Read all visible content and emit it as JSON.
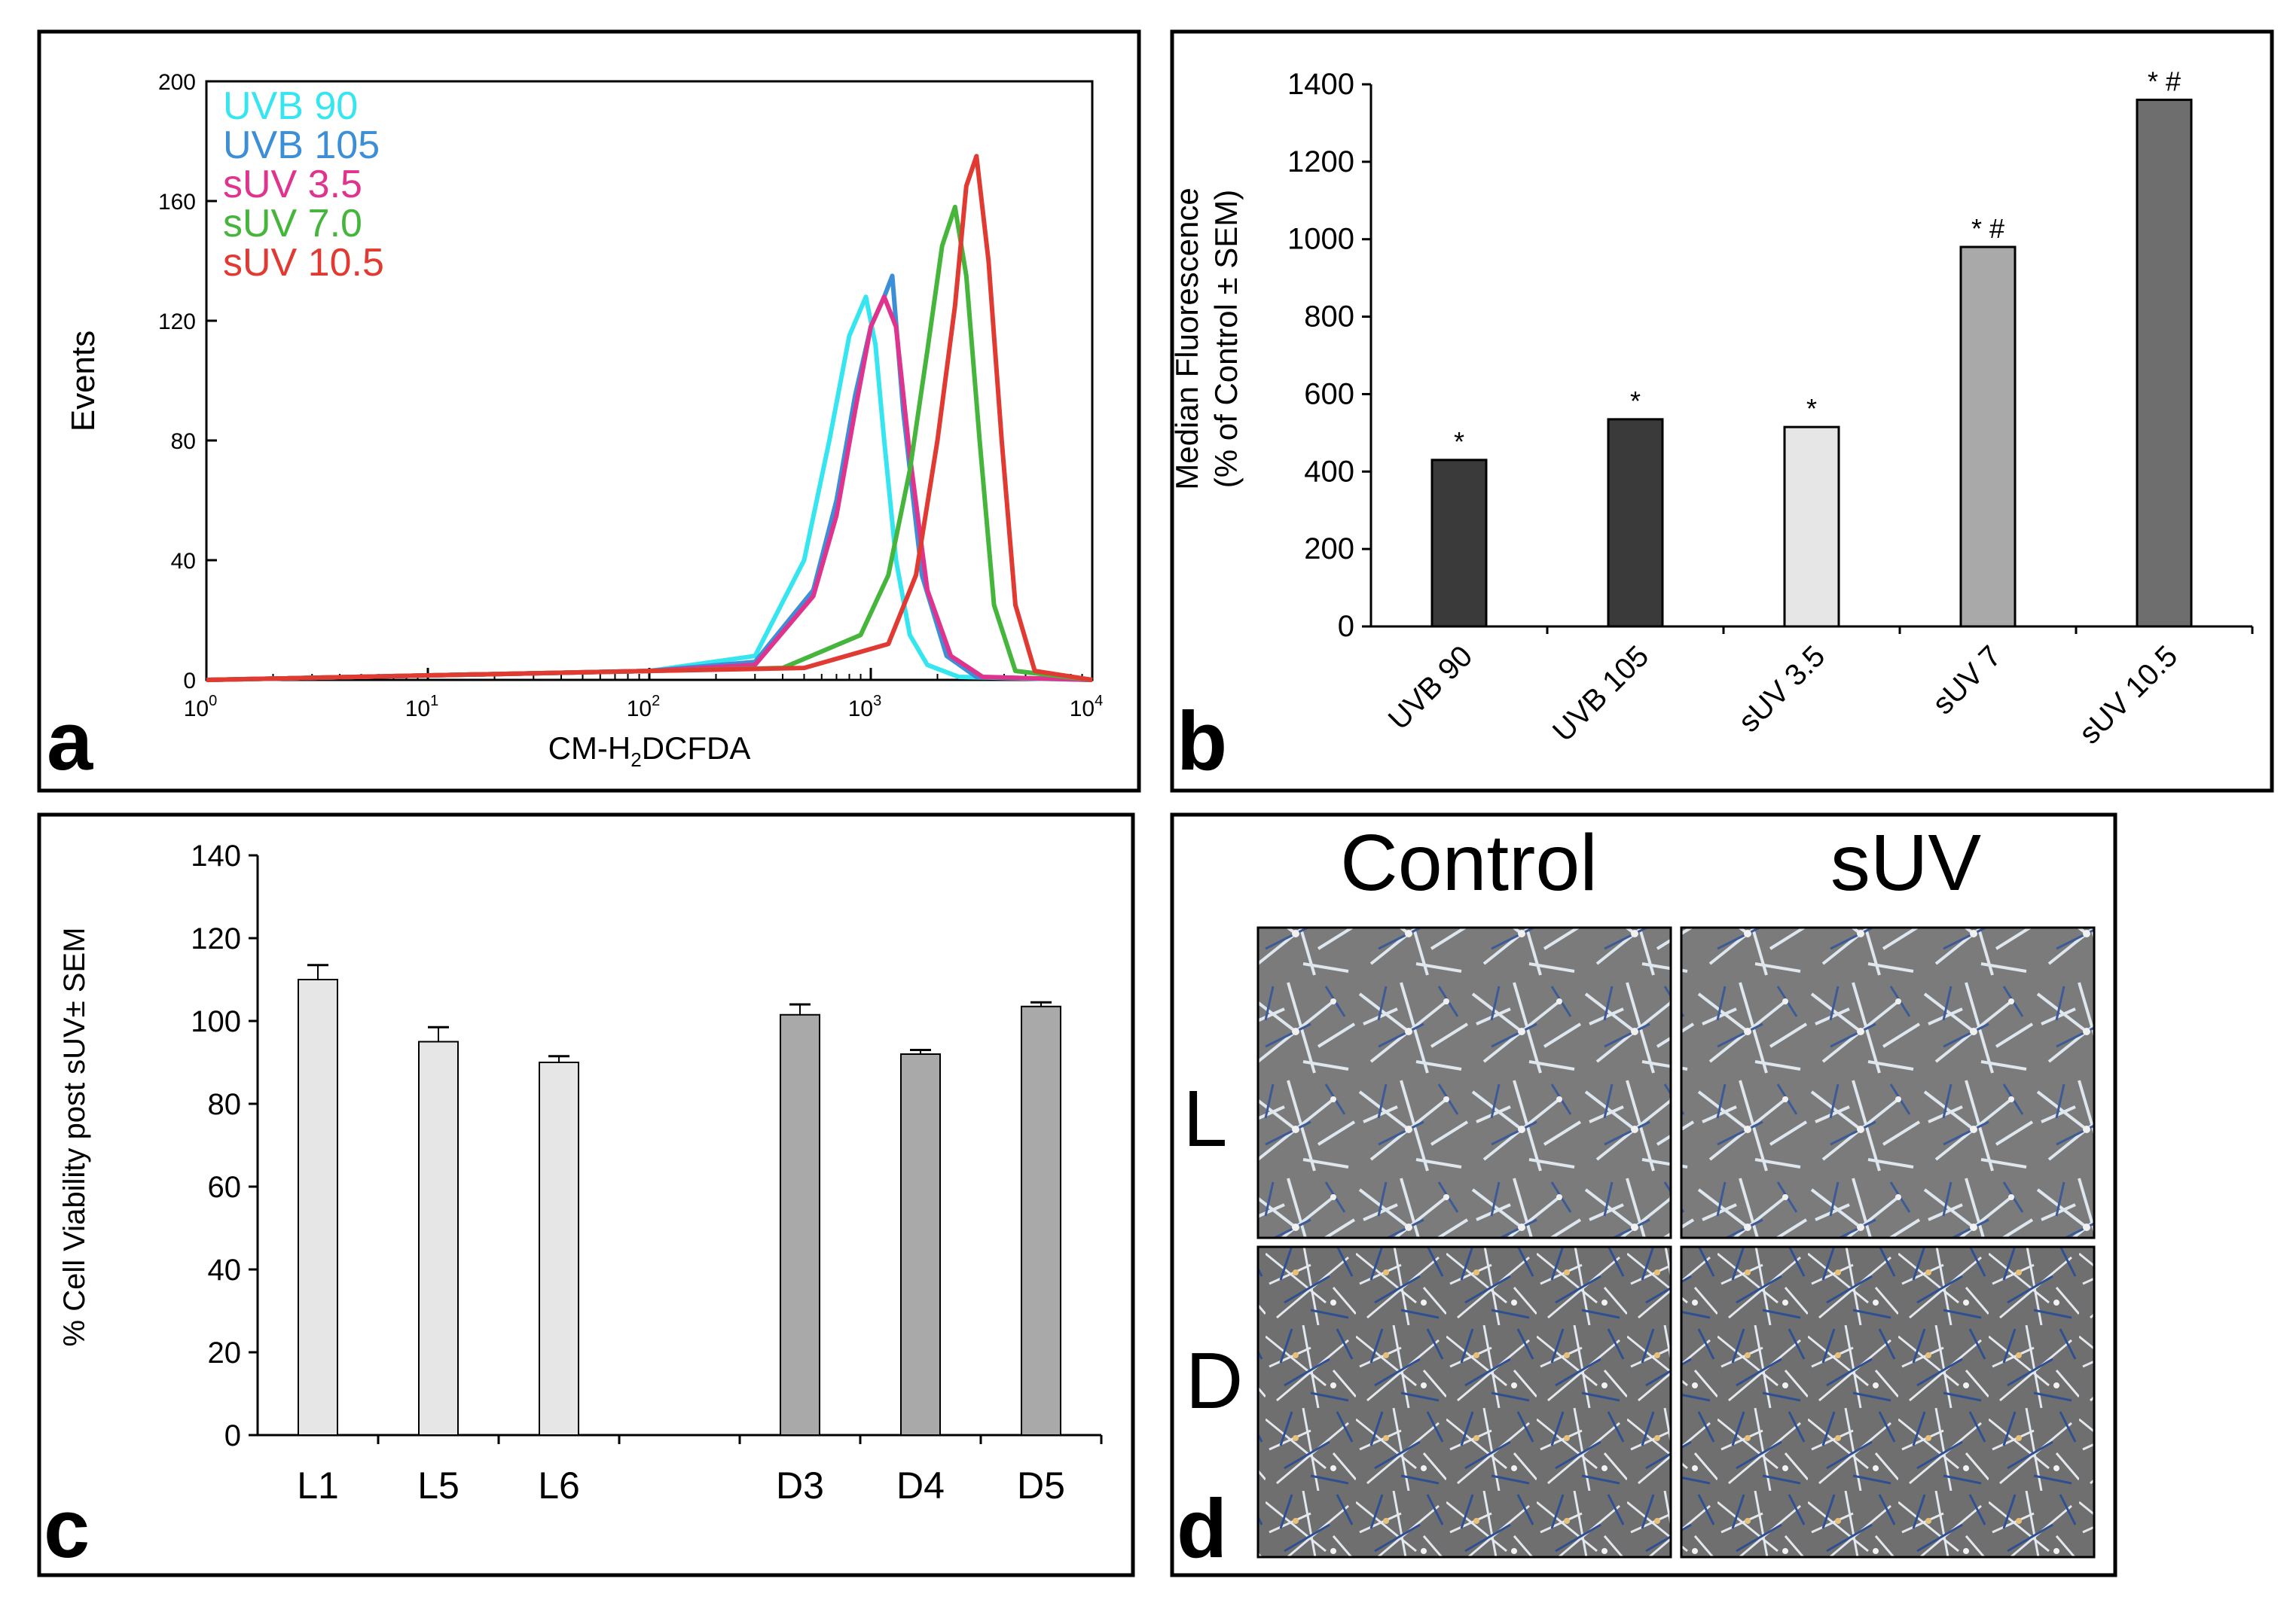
{
  "panels": {
    "a": {
      "panel_label": "a",
      "title": "",
      "xlabel_main": "CM-H",
      "xlabel_sub": "2",
      "xlabel_tail": "DCFDA",
      "ylabel": "Events",
      "y_ticks": [
        "0",
        "40",
        "80",
        "120",
        "160",
        "200"
      ],
      "x_tick_base": "10",
      "x_tick_exps": [
        "0",
        "1",
        "2",
        "3",
        "4"
      ],
      "legend": [
        {
          "name": "UVB 90",
          "color": "#35e6f0"
        },
        {
          "name": "UVB 105",
          "color": "#3c8fd6"
        },
        {
          "name": "sUV 3.5",
          "color": "#e0338d"
        },
        {
          "name": "sUV 7.0",
          "color": "#46b53c"
        },
        {
          "name": "sUV 10.5",
          "color": "#e03a33"
        }
      ]
    },
    "b": {
      "panel_label": "b",
      "ylabel_line1": "Median Fluorescence",
      "ylabel_line2": "(% of Control ± SEM)",
      "y_ticks": [
        "0",
        "200",
        "400",
        "600",
        "800",
        "1000",
        "1200",
        "1400"
      ]
    },
    "c": {
      "panel_label": "c",
      "ylabel": "% Cell Viability post sUV± SEM",
      "y_ticks": [
        "0",
        "20",
        "40",
        "60",
        "80",
        "100",
        "120",
        "140"
      ]
    },
    "d": {
      "panel_label": "d",
      "col_labels": [
        "Control",
        "sUV"
      ],
      "row_labels": [
        "L",
        "D"
      ]
    }
  },
  "chart_data": [
    {
      "id": "a",
      "type": "line",
      "title": "",
      "xlabel": "CM-H2DCFDA",
      "ylabel": "Events",
      "x_scale": "log",
      "xlim": [
        1,
        10000
      ],
      "ylim": [
        0,
        200
      ],
      "grid": false,
      "legend_position": "top-left",
      "series": [
        {
          "name": "UVB 90",
          "color": "#35e6f0",
          "x": [
            1,
            100,
            300,
            500,
            650,
            800,
            950,
            1050,
            1150,
            1300,
            1500,
            1800,
            2500,
            10000
          ],
          "y": [
            0,
            3,
            8,
            40,
            80,
            115,
            128,
            112,
            80,
            40,
            15,
            5,
            1,
            0
          ]
        },
        {
          "name": "UVB 105",
          "color": "#3c8fd6",
          "x": [
            1,
            100,
            300,
            550,
            700,
            850,
            1000,
            1150,
            1250,
            1400,
            1700,
            2200,
            3000,
            10000
          ],
          "y": [
            0,
            3,
            6,
            30,
            60,
            95,
            118,
            128,
            135,
            90,
            35,
            8,
            1,
            0
          ]
        },
        {
          "name": "sUV 3.5",
          "color": "#e0338d",
          "x": [
            1,
            100,
            300,
            550,
            700,
            850,
            1000,
            1150,
            1300,
            1500,
            1800,
            2300,
            3200,
            10000
          ],
          "y": [
            0,
            3,
            5,
            28,
            55,
            90,
            118,
            128,
            118,
            75,
            30,
            8,
            1,
            0
          ]
        },
        {
          "name": "sUV 7.0",
          "color": "#46b53c",
          "x": [
            1,
            100,
            400,
            900,
            1200,
            1500,
            1800,
            2100,
            2400,
            2700,
            3100,
            3600,
            4500,
            10000
          ],
          "y": [
            0,
            3,
            4,
            15,
            35,
            70,
            110,
            145,
            158,
            135,
            80,
            25,
            3,
            0
          ]
        },
        {
          "name": "sUV 10.5",
          "color": "#e03a33",
          "x": [
            1,
            100,
            500,
            1200,
            1600,
            2000,
            2400,
            2700,
            3000,
            3400,
            3900,
            4500,
            5500,
            10000
          ],
          "y": [
            0,
            3,
            4,
            12,
            35,
            80,
            125,
            165,
            175,
            140,
            80,
            25,
            3,
            0
          ]
        }
      ]
    },
    {
      "id": "b",
      "type": "bar",
      "title": "",
      "xlabel": "",
      "ylabel": "Median Fluorescence (% of Control ± SEM)",
      "ylim": [
        0,
        1400
      ],
      "categories": [
        "UVB 90",
        "UVB 105",
        "sUV 3.5",
        "sUV 7",
        "sUV 10.5"
      ],
      "values": [
        430,
        535,
        515,
        980,
        1360
      ],
      "colors": [
        "#3a3a3a",
        "#3a3a3a",
        "#e6e6e6",
        "#a9a9a9",
        "#6e6e6e"
      ],
      "annotations": [
        "*",
        "*",
        "*",
        "* #",
        "* #"
      ]
    },
    {
      "id": "c",
      "type": "bar",
      "title": "",
      "xlabel": "",
      "ylabel": "% Cell Viability post sUV± SEM",
      "ylim": [
        0,
        140
      ],
      "categories": [
        "L1",
        "L5",
        "L6",
        "",
        "D3",
        "D4",
        "D5"
      ],
      "values": [
        110,
        95,
        90,
        null,
        101.5,
        92,
        103.5
      ],
      "errors": [
        3.5,
        3.5,
        1.5,
        null,
        2.5,
        1,
        1
      ],
      "colors": [
        "#e6e6e6",
        "#e6e6e6",
        "#e6e6e6",
        null,
        "#a9a9a9",
        "#a9a9a9",
        "#a9a9a9"
      ]
    }
  ]
}
